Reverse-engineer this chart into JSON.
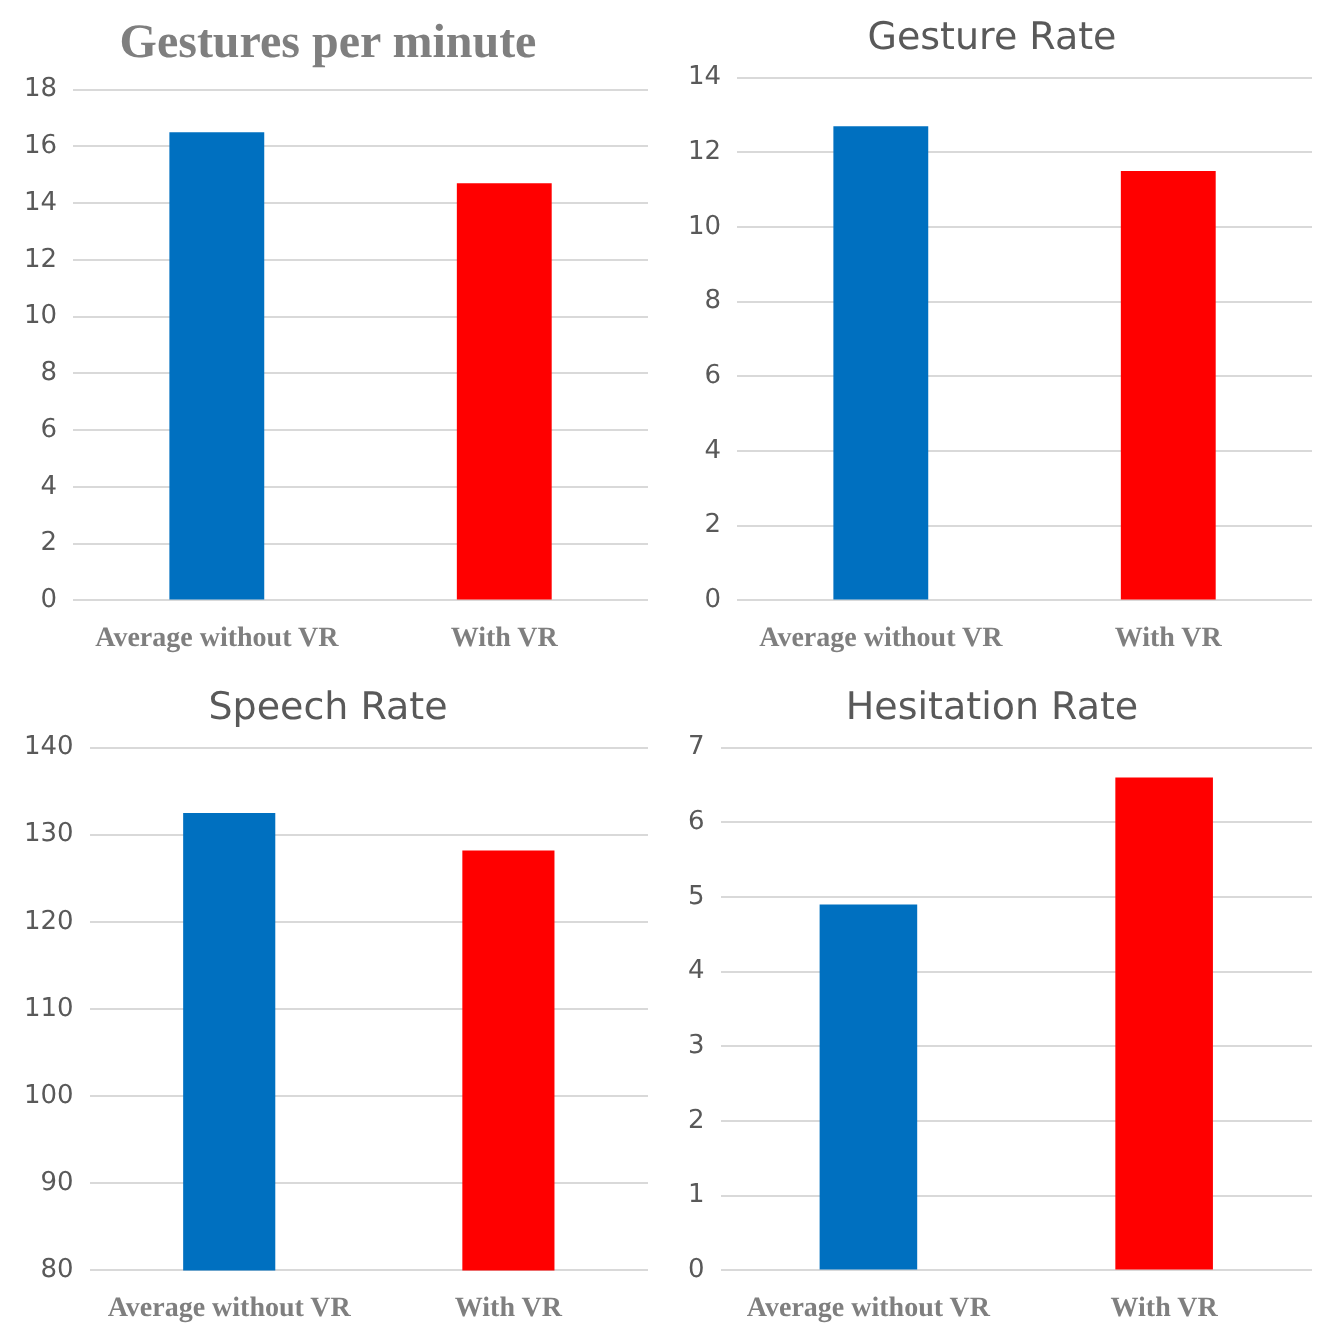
{
  "chart_data": [
    {
      "type": "bar",
      "title": "Gestures per minute",
      "categories": [
        "Average without VR",
        "With VR"
      ],
      "values": [
        16.5,
        14.7
      ],
      "colors": [
        "#0070c0",
        "#ff0000"
      ],
      "ylim": [
        0,
        18
      ],
      "yticks": [
        0,
        2,
        4,
        6,
        8,
        10,
        12,
        14,
        16,
        18
      ],
      "grid": "y"
    },
    {
      "type": "bar",
      "title": "Gesture Rate",
      "categories": [
        "Average without VR",
        "With VR"
      ],
      "values": [
        12.7,
        11.5
      ],
      "colors": [
        "#0070c0",
        "#ff0000"
      ],
      "ylim": [
        0,
        14
      ],
      "yticks": [
        0,
        2,
        4,
        6,
        8,
        10,
        12,
        14
      ],
      "grid": "y"
    },
    {
      "type": "bar",
      "title": "Speech Rate",
      "categories": [
        "Average without VR",
        "With VR"
      ],
      "values": [
        132.5,
        128.2
      ],
      "colors": [
        "#0070c0",
        "#ff0000"
      ],
      "ylim": [
        80,
        140
      ],
      "yticks": [
        80,
        90,
        100,
        110,
        120,
        130,
        140
      ],
      "grid": "y"
    },
    {
      "type": "bar",
      "title": "Hesitation Rate",
      "categories": [
        "Average without VR",
        "With VR"
      ],
      "values": [
        4.9,
        6.6
      ],
      "colors": [
        "#0070c0",
        "#ff0000"
      ],
      "ylim": [
        0,
        7
      ],
      "yticks": [
        0,
        1,
        2,
        3,
        4,
        5,
        6,
        7
      ],
      "grid": "y"
    }
  ]
}
